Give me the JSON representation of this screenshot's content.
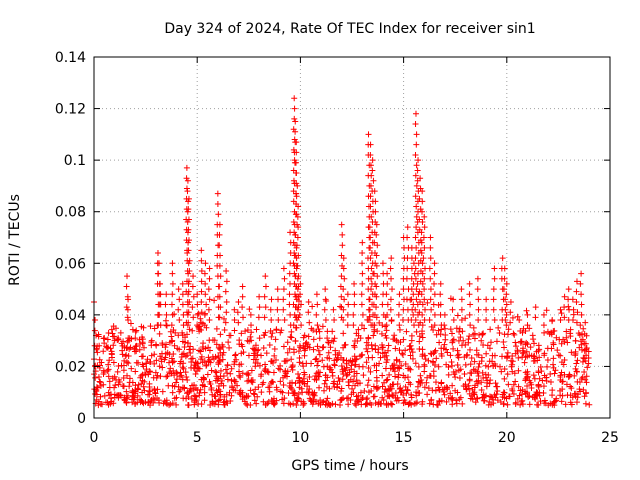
{
  "chart_data": {
    "type": "scatter",
    "title": "Day 324 of 2024, Rate Of TEC Index for receiver sin1",
    "xlabel": "GPS time / hours",
    "ylabel": "ROTI / TECUs",
    "xlim": [
      0,
      25
    ],
    "ylim": [
      0,
      0.14
    ],
    "xticks": [
      0,
      5,
      10,
      15,
      20,
      25
    ],
    "xtick_labels": [
      "0",
      "5",
      "10",
      "15",
      "20",
      "25"
    ],
    "yticks": [
      0,
      0.02,
      0.04,
      0.06,
      0.08,
      0.1,
      0.12,
      0.14
    ],
    "ytick_labels": [
      "0",
      "0.02",
      "0.04",
      "0.06",
      "0.08",
      "0.1",
      "0.12",
      "0.14"
    ],
    "grid": true,
    "marker": "+",
    "color": "#ff0000",
    "series": [
      {
        "name": "sin1",
        "x": [
          0.0,
          0.05,
          0.1,
          0.25,
          0.5,
          0.8,
          1.0,
          1.3,
          1.6,
          1.65,
          2.0,
          2.4,
          2.8,
          3.1,
          3.15,
          3.2,
          3.5,
          3.8,
          4.1,
          4.3,
          4.5,
          4.55,
          4.6,
          4.8,
          5.0,
          5.2,
          5.4,
          5.6,
          6.0,
          6.1,
          6.4,
          6.8,
          7.0,
          7.2,
          7.6,
          8.0,
          8.3,
          8.6,
          8.9,
          9.2,
          9.5,
          9.7,
          9.75,
          9.8,
          9.85,
          9.9,
          10.0,
          10.4,
          10.8,
          11.2,
          11.6,
          12.0,
          12.1,
          12.3,
          12.6,
          13.0,
          13.3,
          13.4,
          13.5,
          13.6,
          13.7,
          14.0,
          14.2,
          14.4,
          14.8,
          15.0,
          15.2,
          15.4,
          15.5,
          15.6,
          15.7,
          15.8,
          15.9,
          16.0,
          16.3,
          16.5,
          16.8,
          17.0,
          17.4,
          17.8,
          18.2,
          18.6,
          19.0,
          19.4,
          19.8,
          19.9,
          20.0,
          20.2,
          20.6,
          21.0,
          21.4,
          21.8,
          22.2,
          22.6,
          22.8,
          23.0,
          23.2,
          23.4,
          23.6,
          23.8
        ],
        "y": [
          0.045,
          0.038,
          0.032,
          0.028,
          0.031,
          0.027,
          0.03,
          0.033,
          0.055,
          0.046,
          0.031,
          0.035,
          0.03,
          0.064,
          0.06,
          0.052,
          0.048,
          0.06,
          0.05,
          0.052,
          0.097,
          0.092,
          0.085,
          0.055,
          0.048,
          0.065,
          0.06,
          0.058,
          0.087,
          0.075,
          0.057,
          0.042,
          0.045,
          0.051,
          0.04,
          0.047,
          0.055,
          0.046,
          0.05,
          0.058,
          0.072,
          0.124,
          0.115,
          0.107,
          0.09,
          0.063,
          0.052,
          0.045,
          0.048,
          0.05,
          0.042,
          0.075,
          0.062,
          0.048,
          0.052,
          0.068,
          0.11,
          0.106,
          0.1,
          0.088,
          0.075,
          0.06,
          0.056,
          0.062,
          0.048,
          0.07,
          0.074,
          0.066,
          0.06,
          0.118,
          0.1,
          0.093,
          0.088,
          0.078,
          0.07,
          0.06,
          0.052,
          0.04,
          0.046,
          0.05,
          0.052,
          0.054,
          0.046,
          0.058,
          0.062,
          0.058,
          0.052,
          0.045,
          0.038,
          0.04,
          0.043,
          0.04,
          0.038,
          0.042,
          0.047,
          0.05,
          0.046,
          0.053,
          0.056,
          0.037
        ]
      }
    ],
    "noise_band": {
      "note": "dense background cloud of ROTI values between approx 0.005 and 0.035 TECU/min across all hours",
      "ymin": 0.005,
      "ymax": 0.035
    }
  }
}
